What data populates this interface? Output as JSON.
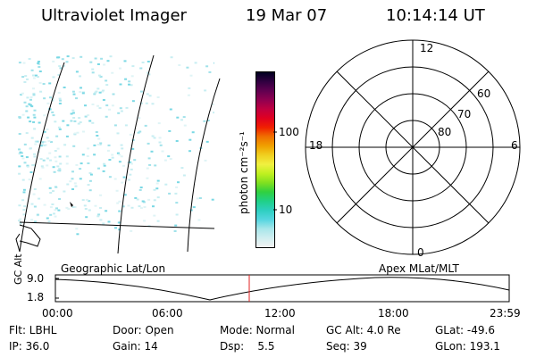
{
  "header": {
    "instrument": "Ultraviolet Imager",
    "date": "19 Mar 07",
    "time": "10:14:14 UT"
  },
  "map_panel": {
    "caption": "Geographic Lat/Lon"
  },
  "colorbar": {
    "unit_label": "photon cm⁻²s⁻¹",
    "ticks": [
      {
        "label": "100",
        "value": 100
      },
      {
        "label": "10",
        "value": 10
      }
    ],
    "colors": [
      "#f2f2f2",
      "#d0eef0",
      "#a8e6ea",
      "#55d6e0",
      "#2ecfc0",
      "#20d088",
      "#30d040",
      "#80e020",
      "#c0f020",
      "#f0f040",
      "#f0d020",
      "#f0a000",
      "#f07000",
      "#f02000",
      "#e00020",
      "#c00040",
      "#900050",
      "#600050",
      "#300040",
      "#000020"
    ]
  },
  "polar_panel": {
    "caption": "Apex  MLat/MLT",
    "mlt_labels": {
      "top": "12",
      "bottom": "0",
      "left": "18",
      "right": "6"
    },
    "lat_labels": [
      "60",
      "70",
      "80"
    ]
  },
  "altitude_plot": {
    "ylabel": "GC Alt",
    "y_ticks": [
      "9.0",
      "1.8"
    ],
    "x_ticks": [
      "00:00",
      "06:00",
      "12:00",
      "18:00",
      "23:59"
    ],
    "current_time_marker": "10:14"
  },
  "info": {
    "filter": "Flt: LBHL",
    "ip": "IP: 36.0",
    "door": "Door: Open",
    "gain": "Gain: 14",
    "mode": "Mode: Normal",
    "dsp": "Dsp:    5.5",
    "gc_alt": "GC Alt: 4.0 Re",
    "seq": "Seq: 39",
    "glat": "GLat: -49.6",
    "glon": "GLon: 193.1"
  }
}
